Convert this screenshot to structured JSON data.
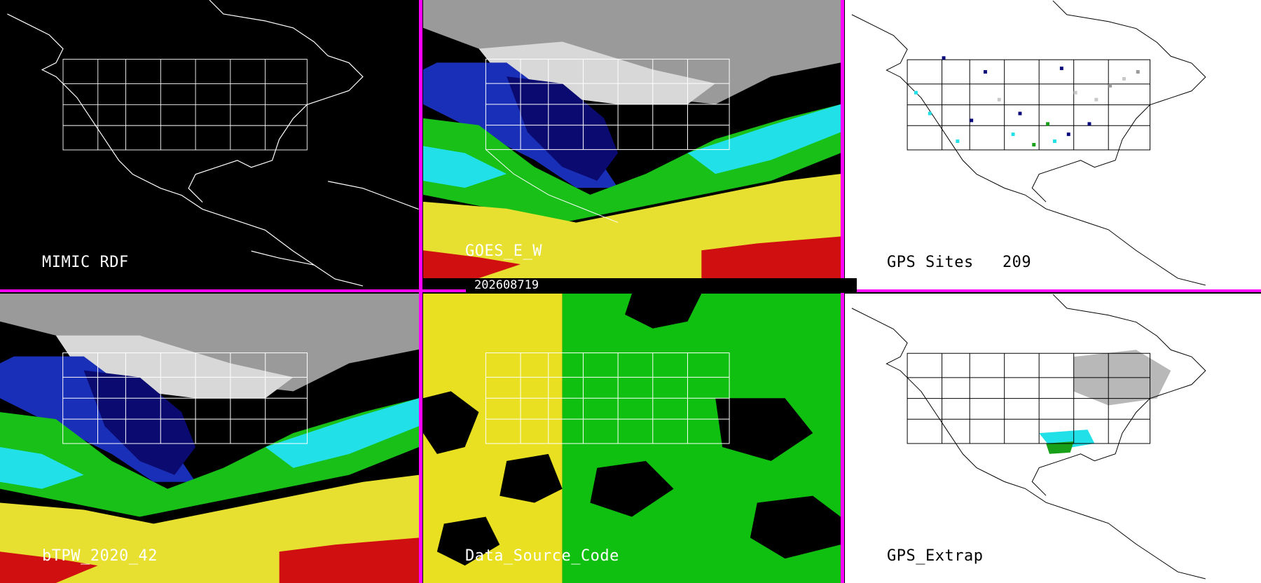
{
  "timestamp": "202608719",
  "panels": [
    {
      "id": "mimic-rdf",
      "label": "MIMIC RDF",
      "theme": "dark",
      "content": "outline-only"
    },
    {
      "id": "goes-e-w",
      "label": "GOES_E_W",
      "theme": "dark",
      "content": "tpw-field"
    },
    {
      "id": "gps-sites",
      "label": "GPS Sites   209",
      "theme": "light",
      "content": "gps-stations"
    },
    {
      "id": "btpw",
      "label": "bTPW_2020_42",
      "theme": "dark",
      "content": "tpw-field"
    },
    {
      "id": "data-source-code",
      "label": "Data_Source_Code",
      "theme": "dark",
      "content": "source-code"
    },
    {
      "id": "gps-extrap",
      "label": "GPS_Extrap",
      "theme": "light",
      "content": "gps-extrap"
    }
  ],
  "colors": {
    "divider": "#ff00ff",
    "tpw_dry": "#0a0a7a",
    "tpw_low": "#1e3cc8",
    "tpw_mid": "#22e0e8",
    "tpw_high": "#18c018",
    "tpw_very_high": "#f0e030",
    "tpw_extreme": "#d01010",
    "snow_gray": "#c8c8c8",
    "source_yellow": "#e8e020",
    "source_green": "#10c010"
  }
}
